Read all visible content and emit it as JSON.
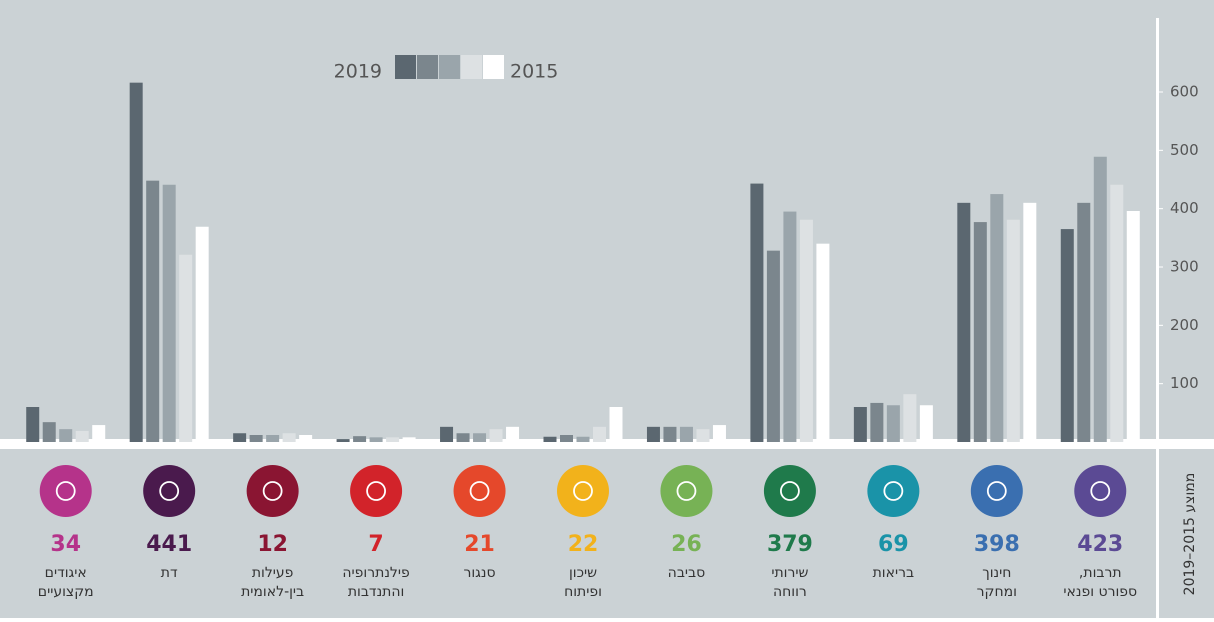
{
  "chart_data": {
    "type": "bar",
    "legend": {
      "from": "2019",
      "to": "2015"
    },
    "average_label": "ממוצע 2015–2019",
    "categories": [
      [
        "תרבות,",
        "ספורט ופנאי"
      ],
      [
        "חינוך",
        "ומחקר"
      ],
      [
        "בריאות"
      ],
      [
        "שירותי",
        "רווחה"
      ],
      [
        "סביבה"
      ],
      [
        "שיכון",
        "ופיתוח"
      ],
      [
        "סנגור"
      ],
      [
        "פילנתרופיה",
        "והתנדבות"
      ],
      [
        "פעילות",
        "בין-לאומית"
      ],
      [
        "דת"
      ],
      [
        "איגודים",
        "מקצועיים"
      ]
    ],
    "averages": [
      423,
      398,
      69,
      379,
      26,
      22,
      21,
      7,
      12,
      441,
      34
    ],
    "category_colors": [
      "#5b4a94",
      "#3a6fb0",
      "#1a93a8",
      "#1f7a4b",
      "#77b255",
      "#f2b21b",
      "#e5482b",
      "#d2232a",
      "#8a1532",
      "#4a1a4d",
      "#b5338a"
    ],
    "series": [
      {
        "color": "#5b6770",
        "values": [
          365,
          410,
          60,
          443,
          26,
          9,
          26,
          5,
          15,
          616,
          60
        ]
      },
      {
        "color": "#7b868d",
        "values": [
          410,
          377,
          67,
          328,
          26,
          12,
          15,
          10,
          12,
          448,
          34
        ]
      },
      {
        "color": "#9aa5ab",
        "values": [
          489,
          425,
          63,
          395,
          26,
          9,
          15,
          8,
          12,
          441,
          22
        ]
      },
      {
        "color": "#dde1e3",
        "values": [
          441,
          381,
          82,
          381,
          22,
          26,
          22,
          8,
          15,
          321,
          19
        ]
      },
      {
        "color": "#ffffff",
        "values": [
          396,
          410,
          63,
          340,
          29,
          60,
          26,
          8,
          12,
          369,
          29
        ]
      }
    ],
    "ylim": [
      0,
      720
    ],
    "yticks": [
      100,
      200,
      300,
      400,
      500,
      600
    ]
  }
}
